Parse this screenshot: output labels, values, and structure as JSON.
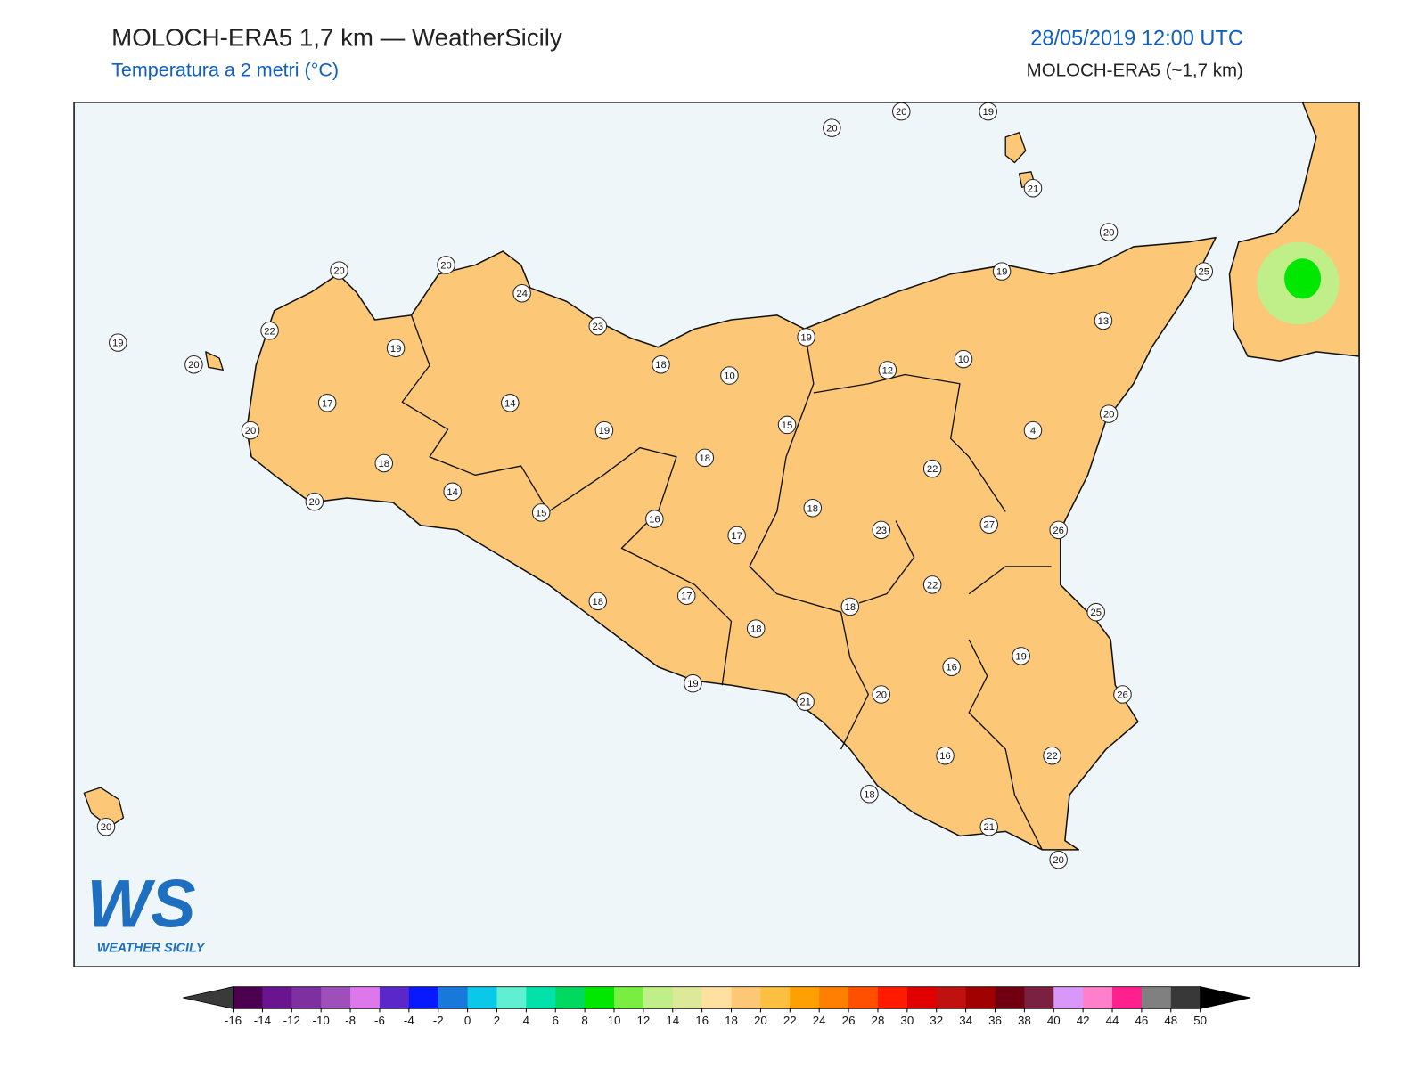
{
  "header": {
    "title": "MOLOCH-ERA5 1,7 km — WeatherSicily",
    "subtitle": "Temperatura a 2 metri (°C)",
    "datetime": "28/05/2019 12:00 UTC",
    "model": "MOLOCH-ERA5 (~1,7 km)"
  },
  "logo": {
    "mark": "WS",
    "name": "WEATHER SICILY"
  },
  "stations": [
    20,
    20,
    19,
    21,
    20,
    25,
    19,
    13,
    20,
    20,
    24,
    23,
    22,
    19,
    19,
    20,
    19,
    18,
    10,
    12,
    10,
    17,
    14,
    19,
    15,
    4,
    20,
    20,
    18,
    18,
    22,
    14,
    20,
    15,
    16,
    18,
    17,
    23,
    27,
    26,
    22,
    18,
    17,
    18,
    25,
    18,
    19,
    16,
    19,
    21,
    20,
    26,
    16,
    22,
    18,
    20,
    21,
    20
  ],
  "colorbar": {
    "ticks": [
      -16,
      -14,
      -12,
      -10,
      -8,
      -6,
      -4,
      -2,
      0,
      2,
      4,
      6,
      8,
      10,
      12,
      14,
      16,
      18,
      20,
      22,
      24,
      26,
      28,
      30,
      32,
      34,
      36,
      38,
      40,
      42,
      44,
      46,
      48,
      50
    ],
    "colors": [
      "#4b0050",
      "#6a1590",
      "#7d30a0",
      "#9f50b8",
      "#dc78ea",
      "#5a28c8",
      "#0818ff",
      "#1878dc",
      "#0ac8e8",
      "#5ef0d0",
      "#00e2aa",
      "#00d860",
      "#00e800",
      "#7aee40",
      "#c0ee88",
      "#dde898",
      "#ffe0a0",
      "#fcc878",
      "#fcc040",
      "#ffa000",
      "#ff8000",
      "#ff5000",
      "#ff1a00",
      "#e00000",
      "#c01010",
      "#a00000",
      "#700010",
      "#7a2040",
      "#d898f8",
      "#ff80c8",
      "#ff2090",
      "#808080",
      "#383838"
    ],
    "under": "#3a3a3a",
    "over": "#000000"
  }
}
